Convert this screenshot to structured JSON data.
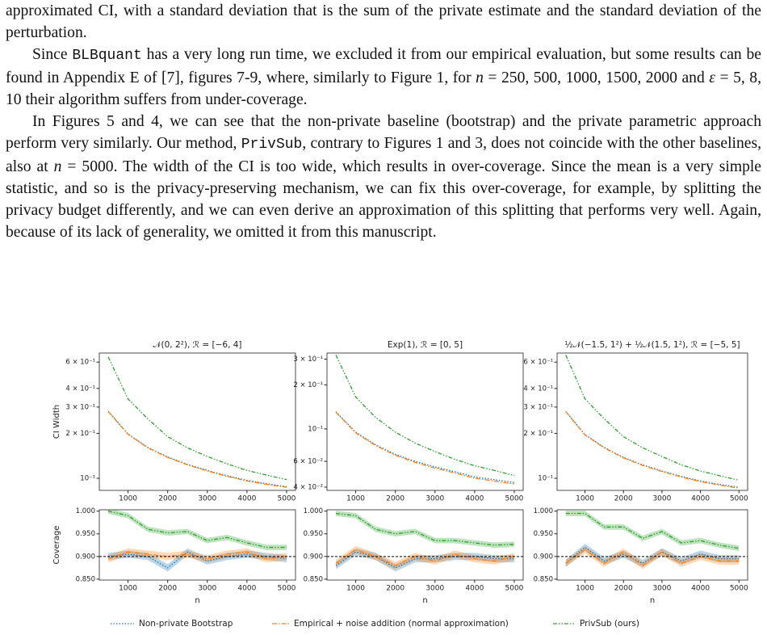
{
  "paragraphs": [
    {
      "indent": false,
      "runs": [
        {
          "text": "approximated CI, with a standard deviation that is the sum of the private estimate and the standard deviation of the perturbation."
        }
      ]
    },
    {
      "indent": true,
      "runs": [
        {
          "text": "Since "
        },
        {
          "text": "BLBquant",
          "style": "code"
        },
        {
          "text": " has a very long run time, we excluded it from our empirical evaluation, but some results can be found in Appendix E of [7], figures 7-9, where, similarly to Figure 1, for "
        },
        {
          "text": "n",
          "style": "math"
        },
        {
          "text": " = 250, 500, 1000, 1500, 2000 and "
        },
        {
          "text": "ε",
          "style": "math"
        },
        {
          "text": " = 5, 8, 10 their algorithm suffers from under-coverage."
        }
      ]
    },
    {
      "indent": true,
      "runs": [
        {
          "text": "In Figures 5 and 4, we can see that the non-private baseline (bootstrap) and the private parametric approach perform very similarly. Our method, "
        },
        {
          "text": "PrivSub",
          "style": "code"
        },
        {
          "text": ", contrary to Figures 1 and 3, does not coincide with the other baselines, also at "
        },
        {
          "text": "n",
          "style": "math"
        },
        {
          "text": " = 5000. The width of the CI is too wide, which results in over-coverage. Since the mean is a very simple statistic, and so is the privacy-preserving mechanism, we can fix this over-coverage, for example, by splitting the privacy budget differently, and we can even derive an approximation of this splitting that performs very well. Again, because of its lack of generality, we omitted it from this manuscript."
        }
      ]
    }
  ],
  "legend": [
    {
      "name": "Non-private Bootstrap",
      "color": "#1f77b4",
      "linestyle": "dotted"
    },
    {
      "name": "Empirical + noise addition (normal approximation)",
      "color": "#ff7f0e",
      "linestyle": "dashdot"
    },
    {
      "name": "PrivSub (ours)",
      "color": "#2ca02c",
      "linestyle": "dashdotdot"
    }
  ],
  "chart_data": [
    {
      "type": "line",
      "title": "𝒩(0, 2²),  ℛ = [−6, 4]",
      "ylabel": "CI Width",
      "log_y": true,
      "x": [
        500,
        1000,
        1500,
        2000,
        2500,
        3000,
        3500,
        4000,
        4500,
        5000
      ],
      "xlim": [
        275,
        5225
      ],
      "xticks": [
        1000,
        2000,
        3000,
        4000,
        5000
      ],
      "ylim": [
        0.083,
        0.69
      ],
      "yticks": [
        {
          "value": 0.1,
          "label": "10⁻¹"
        },
        {
          "value": 0.2,
          "label": "2 × 10⁻¹"
        },
        {
          "value": 0.3,
          "label": "3 × 10⁻¹"
        },
        {
          "value": 0.4,
          "label": "4 × 10⁻¹"
        },
        {
          "value": 0.6,
          "label": "6 × 10⁻¹"
        }
      ],
      "series": [
        {
          "values": [
            0.281,
            0.198,
            0.161,
            0.139,
            0.124,
            0.113,
            0.104,
            0.097,
            0.092,
            0.088
          ]
        },
        {
          "values": [
            0.28,
            0.197,
            0.16,
            0.138,
            0.123,
            0.112,
            0.103,
            0.096,
            0.091,
            0.087
          ]
        },
        {
          "values": [
            0.65,
            0.34,
            0.25,
            0.19,
            0.16,
            0.14,
            0.125,
            0.113,
            0.105,
            0.098
          ]
        }
      ]
    },
    {
      "type": "line",
      "title": "Exp(1),  ℛ = [0, 5]",
      "log_y": true,
      "x": [
        500,
        1000,
        1500,
        2000,
        2500,
        3000,
        3500,
        4000,
        4500,
        5000
      ],
      "xlim": [
        275,
        5225
      ],
      "xticks": [
        1000,
        2000,
        3000,
        4000,
        5000
      ],
      "ylim": [
        0.038,
        0.33
      ],
      "yticks": [
        {
          "value": 0.04,
          "label": "4 × 10⁻²"
        },
        {
          "value": 0.06,
          "label": "6 × 10⁻²"
        },
        {
          "value": 0.1,
          "label": "10⁻¹"
        },
        {
          "value": 0.2,
          "label": "2 × 10⁻¹"
        },
        {
          "value": 0.3,
          "label": "3 × 10⁻¹"
        }
      ],
      "series": [
        {
          "values": [
            0.131,
            0.095,
            0.078,
            0.067,
            0.06,
            0.055,
            0.051,
            0.047,
            0.045,
            0.043
          ]
        },
        {
          "values": [
            0.13,
            0.094,
            0.077,
            0.066,
            0.059,
            0.054,
            0.05,
            0.046,
            0.044,
            0.042
          ]
        },
        {
          "values": [
            0.32,
            0.165,
            0.12,
            0.095,
            0.08,
            0.07,
            0.062,
            0.056,
            0.052,
            0.048
          ]
        }
      ]
    },
    {
      "type": "line",
      "title": "½𝒩(−1.5, 1²) + ½𝒩(1.5, 1²), ℛ = [−5, 5]",
      "log_y": true,
      "x": [
        500,
        1000,
        1500,
        2000,
        2500,
        3000,
        3500,
        4000,
        4500,
        5000
      ],
      "xlim": [
        275,
        5225
      ],
      "xticks": [
        1000,
        2000,
        3000,
        4000,
        5000
      ],
      "ylim": [
        0.083,
        0.69
      ],
      "yticks": [
        {
          "value": 0.1,
          "label": "10⁻¹"
        },
        {
          "value": 0.2,
          "label": "2 × 10⁻¹"
        },
        {
          "value": 0.3,
          "label": "3 × 10⁻¹"
        },
        {
          "value": 0.4,
          "label": "4 × 10⁻¹"
        },
        {
          "value": 0.6,
          "label": "6 × 10⁻¹"
        }
      ],
      "series": [
        {
          "values": [
            0.281,
            0.196,
            0.161,
            0.138,
            0.123,
            0.112,
            0.103,
            0.096,
            0.091,
            0.087
          ]
        },
        {
          "values": [
            0.28,
            0.195,
            0.16,
            0.137,
            0.122,
            0.111,
            0.102,
            0.095,
            0.09,
            0.086
          ]
        },
        {
          "values": [
            0.67,
            0.34,
            0.25,
            0.19,
            0.16,
            0.14,
            0.123,
            0.112,
            0.104,
            0.097
          ]
        }
      ]
    },
    {
      "type": "line",
      "ylabel": "Coverage",
      "xlabel": "n",
      "hline": 0.9,
      "x": [
        500,
        1000,
        1500,
        2000,
        2500,
        3000,
        3500,
        4000,
        4500,
        5000
      ],
      "xlim": [
        275,
        5225
      ],
      "xticks": [
        1000,
        2000,
        3000,
        4000,
        5000
      ],
      "ylim": [
        0.848,
        1.003
      ],
      "yticks": [
        {
          "value": 0.85,
          "label": "0.850"
        },
        {
          "value": 0.9,
          "label": "0.900"
        },
        {
          "value": 0.95,
          "label": "0.950"
        },
        {
          "value": 1,
          "label": "1.000"
        }
      ],
      "series": [
        {
          "band": 0.008,
          "values": [
            0.9,
            0.905,
            0.9,
            0.875,
            0.91,
            0.89,
            0.9,
            0.905,
            0.9,
            0.895
          ]
        },
        {
          "band": 0.008,
          "values": [
            0.895,
            0.91,
            0.905,
            0.9,
            0.905,
            0.895,
            0.905,
            0.91,
            0.895,
            0.9
          ]
        },
        {
          "band": 0.006,
          "values": [
            1,
            0.99,
            0.96,
            0.952,
            0.955,
            0.935,
            0.942,
            0.93,
            0.92,
            0.92
          ]
        }
      ]
    },
    {
      "type": "line",
      "xlabel": "n",
      "hline": 0.9,
      "x": [
        500,
        1000,
        1500,
        2000,
        2500,
        3000,
        3500,
        4000,
        4500,
        5000
      ],
      "xlim": [
        275,
        5225
      ],
      "xticks": [
        1000,
        2000,
        3000,
        4000,
        5000
      ],
      "ylim": [
        0.848,
        1.003
      ],
      "yticks": [
        {
          "value": 0.85,
          "label": "0.850"
        },
        {
          "value": 0.9,
          "label": "0.900"
        },
        {
          "value": 0.95,
          "label": "0.950"
        },
        {
          "value": 1,
          "label": "1.000"
        }
      ],
      "series": [
        {
          "band": 0.008,
          "values": [
            0.88,
            0.91,
            0.9,
            0.875,
            0.895,
            0.895,
            0.9,
            0.9,
            0.895,
            0.895
          ]
        },
        {
          "band": 0.008,
          "values": [
            0.885,
            0.915,
            0.9,
            0.88,
            0.9,
            0.89,
            0.905,
            0.895,
            0.89,
            0.9
          ]
        },
        {
          "band": 0.006,
          "values": [
            0.995,
            0.99,
            0.96,
            0.95,
            0.955,
            0.935,
            0.935,
            0.93,
            0.925,
            0.927
          ]
        }
      ]
    },
    {
      "type": "line",
      "xlabel": "n",
      "hline": 0.9,
      "x": [
        500,
        1000,
        1500,
        2000,
        2500,
        3000,
        3500,
        4000,
        4500,
        5000
      ],
      "xlim": [
        275,
        5225
      ],
      "xticks": [
        1000,
        2000,
        3000,
        4000,
        5000
      ],
      "ylim": [
        0.848,
        1.003
      ],
      "yticks": [
        {
          "value": 0.85,
          "label": "0.850"
        },
        {
          "value": 0.9,
          "label": "0.900"
        },
        {
          "value": 0.95,
          "label": "0.950"
        },
        {
          "value": 1,
          "label": "1.000"
        }
      ],
      "series": [
        {
          "band": 0.008,
          "values": [
            0.885,
            0.92,
            0.89,
            0.905,
            0.885,
            0.91,
            0.89,
            0.905,
            0.895,
            0.895
          ]
        },
        {
          "band": 0.008,
          "values": [
            0.885,
            0.915,
            0.885,
            0.91,
            0.88,
            0.91,
            0.885,
            0.9,
            0.89,
            0.89
          ]
        },
        {
          "band": 0.006,
          "values": [
            0.995,
            0.995,
            0.965,
            0.965,
            0.94,
            0.955,
            0.93,
            0.935,
            0.925,
            0.918
          ]
        }
      ]
    }
  ]
}
